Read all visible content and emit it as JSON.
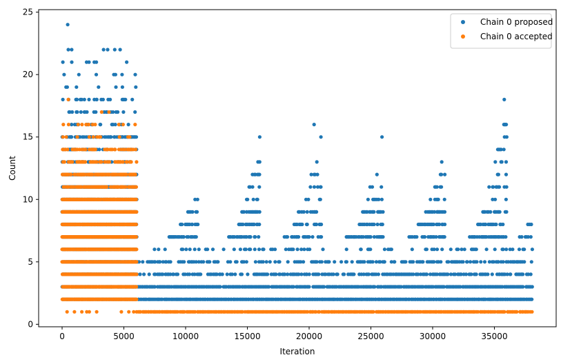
{
  "chart_data": {
    "type": "scatter",
    "xlabel": "Iteration",
    "ylabel": "Count",
    "xlim": [
      -1900,
      40000
    ],
    "ylim": [
      -0.2,
      25.2
    ],
    "x_ticks": [
      0,
      5000,
      10000,
      15000,
      20000,
      25000,
      30000,
      35000
    ],
    "y_ticks": [
      0,
      5,
      10,
      15,
      20,
      25
    ],
    "grid": false,
    "legend_position": "top-right",
    "colors": {
      "proposed": "#1f77b4",
      "accepted": "#ff7f0e"
    },
    "series": [
      {
        "name": "Chain 0 proposed",
        "color": "#1f77b4",
        "bands": [
          {
            "y": 2,
            "x0": 0,
            "x1": 38000,
            "density": 1.0
          },
          {
            "y": 3,
            "x0": 6000,
            "x1": 38000,
            "density": 0.95
          },
          {
            "y": 4,
            "x0": 6000,
            "x1": 38000,
            "density": 0.6
          },
          {
            "y": 5,
            "x0": 6000,
            "x1": 38000,
            "density": 0.45
          },
          {
            "y": 6,
            "x0": 7000,
            "x1": 38000,
            "density": 0.25
          }
        ],
        "clusters": [
          {
            "x0": 8500,
            "x1": 11000,
            "ymax": 11
          },
          {
            "x0": 13500,
            "x1": 16000,
            "ymax": 15
          },
          {
            "x0": 18000,
            "x1": 21000,
            "ymax": 16
          },
          {
            "x0": 23000,
            "x1": 26000,
            "ymax": 15
          },
          {
            "x0": 28000,
            "x1": 31000,
            "ymax": 14
          },
          {
            "x0": 33000,
            "x1": 36000,
            "ymax": 18
          },
          {
            "x0": 37000,
            "x1": 38000,
            "ymax": 9
          }
        ],
        "early": {
          "x0": 0,
          "x1": 6000,
          "ymin": 3,
          "ymax": 22
        },
        "points": [
          {
            "x": 450,
            "y": 24
          },
          {
            "x": 500,
            "y": 22
          },
          {
            "x": 4700,
            "y": 22
          },
          {
            "x": 35800,
            "y": 18
          },
          {
            "x": 20400,
            "y": 16
          },
          {
            "x": 25900,
            "y": 15
          },
          {
            "x": 16000,
            "y": 15
          },
          {
            "x": 36000,
            "y": 15
          }
        ]
      },
      {
        "name": "Chain 0 accepted",
        "color": "#ff7f0e",
        "bands": [
          {
            "y": 1,
            "x0": 0,
            "x1": 38000,
            "density": 0.95
          }
        ],
        "early": {
          "x0": 0,
          "x1": 6000,
          "ymin": 2,
          "ymax": 16
        },
        "points": [
          {
            "x": 500,
            "y": 18
          },
          {
            "x": 3200,
            "y": 17
          },
          {
            "x": 3800,
            "y": 17
          },
          {
            "x": 4600,
            "y": 16
          },
          {
            "x": 100,
            "y": 16
          }
        ]
      }
    ]
  }
}
